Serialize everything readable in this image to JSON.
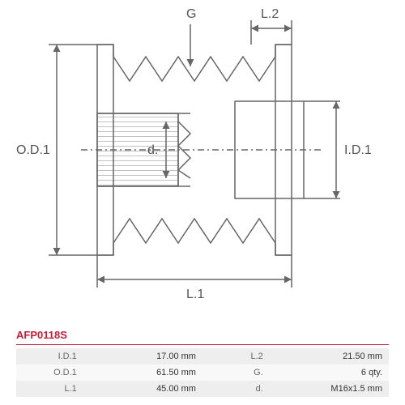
{
  "part_number": "AFP0118S",
  "diagram": {
    "type": "engineering-drawing",
    "stroke": "#666666",
    "stroke_width": 1.5,
    "labels": {
      "OD1": "O.D.1",
      "ID1": "I.D.1",
      "L1": "L.1",
      "L2": "L.2",
      "G": "G",
      "d": "d."
    },
    "label_fontsize": 16,
    "label_color": "#555555",
    "background": "#ffffff",
    "hatch_spacing": 5
  },
  "specs": [
    {
      "k1": "I.D.1",
      "v1": "17.00 mm",
      "k2": "L.2",
      "v2": "21.50 mm"
    },
    {
      "k1": "O.D.1",
      "v1": "61.50 mm",
      "k2": "G.",
      "v2": "6 qty."
    },
    {
      "k1": "L.1",
      "v1": "45.00 mm",
      "k2": "d.",
      "v2": "M16x1.5 mm"
    }
  ],
  "colors": {
    "accent": "#c41e3a",
    "row_alt": "#eeeeee",
    "row_base": "#f8f8f8",
    "text": "#333333",
    "muted": "#666666"
  }
}
